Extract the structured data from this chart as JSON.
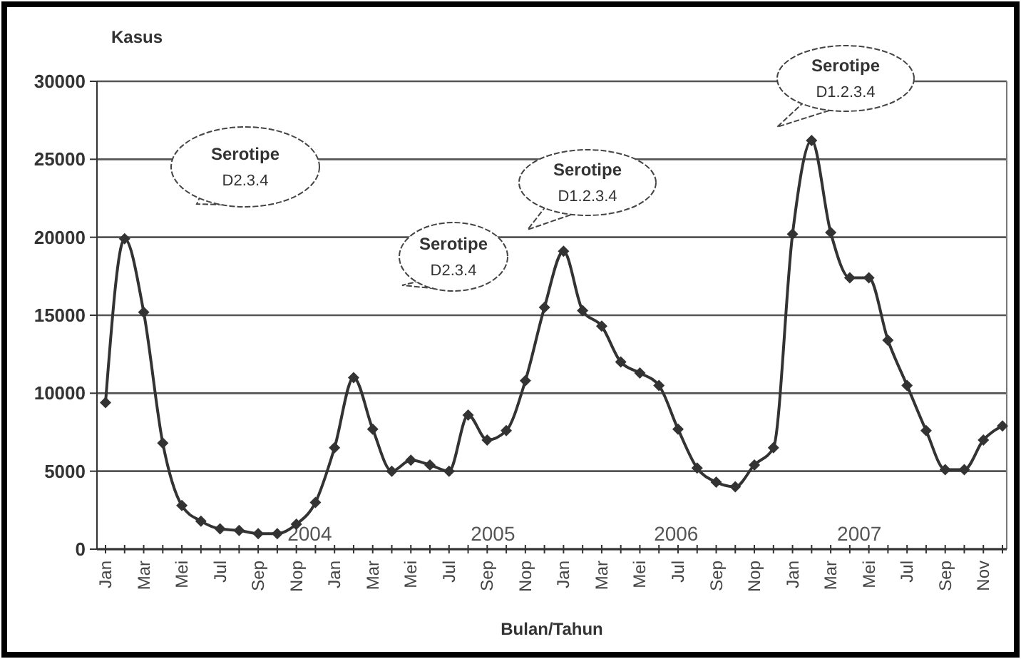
{
  "chart_data": {
    "type": "line",
    "ylabel": "Kasus",
    "xlabel": "Bulan/Tahun",
    "categories": [
      "Jan",
      null,
      "Mar",
      null,
      "Mei",
      null,
      "Jul",
      null,
      "Sep",
      null,
      "Nop",
      null,
      "Jan",
      null,
      "Mar",
      null,
      "Mei",
      null,
      "Jul",
      null,
      "Sep",
      null,
      "Nop",
      null,
      "Jan",
      null,
      "Mar",
      null,
      "Mei",
      null,
      "Jul",
      null,
      "Sep",
      null,
      "Nop",
      null,
      "Jan",
      null,
      "Mar",
      null,
      "Mei",
      null,
      "Jul",
      null,
      "Sep",
      null,
      "Nov",
      null
    ],
    "series": [
      {
        "color": "#333333",
        "values": [
          9400,
          19900,
          15200,
          6800,
          2800,
          1800,
          1300,
          1200,
          1000,
          1000,
          1600,
          3000,
          6500,
          11000,
          7700,
          5000,
          5700,
          5400,
          5000,
          8600,
          7000,
          7600,
          10800,
          15500,
          19100,
          15300,
          14300,
          12000,
          11300,
          10500,
          7700,
          5200,
          4300,
          4000,
          5400,
          6500,
          20200,
          26200,
          20300,
          17400,
          17400,
          13400,
          10500,
          7600,
          5100,
          5100,
          7000,
          7900
        ]
      }
    ],
    "ylim": [
      0,
      30000
    ],
    "yticks": [
      0,
      5000,
      10000,
      15000,
      20000,
      25000,
      30000
    ],
    "grid": "y",
    "marker": "diamond",
    "line_style": "solid",
    "annotations": [
      "2004",
      "2005",
      "2006",
      "2007",
      "Serotipe\nD2.3.4",
      "Serotipe\nD2.3.4",
      "Serotipe\nD1.2.3.4",
      "Serotipe\nD1.2.3.4"
    ]
  }
}
